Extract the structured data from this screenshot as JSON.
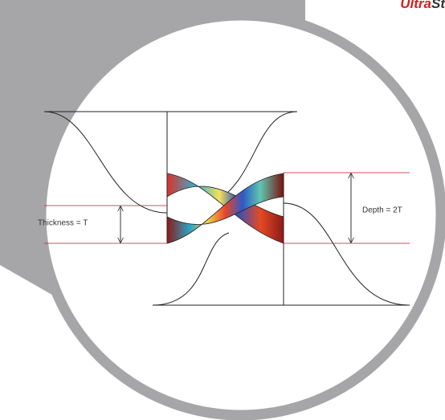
{
  "logo": {
    "red": "Ultra",
    "dark": "St"
  },
  "labels": {
    "thickness": "Thickness = T",
    "depth": "Depth = 2T"
  }
}
